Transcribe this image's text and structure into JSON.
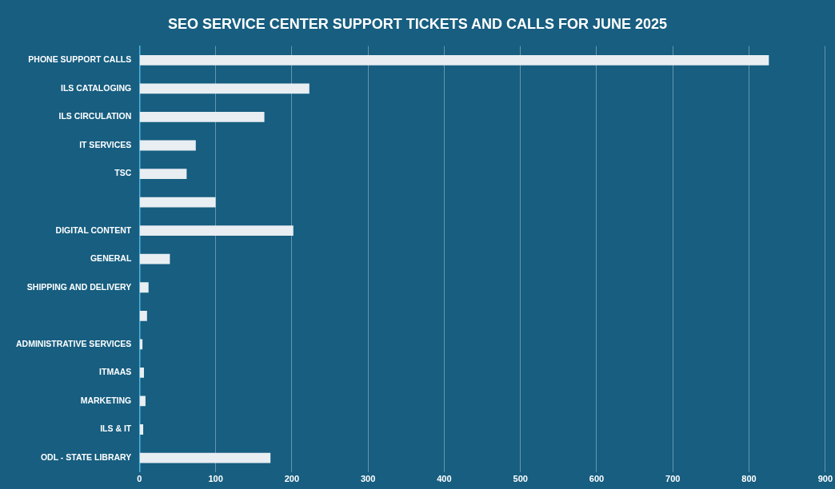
{
  "chart_data": {
    "type": "bar",
    "orientation": "horizontal",
    "title": "SEO SERVICE CENTER SUPPORT TICKETS AND CALLS FOR JUNE 2025",
    "categories": [
      "PHONE SUPPORT CALLS",
      "ILS CATALOGING",
      "ILS CIRCULATION",
      "IT SERVICES",
      "TSC",
      null,
      "DIGITAL CONTENT",
      "GENERAL",
      "SHIPPING AND DELIVERY",
      null,
      "ADMINISTRATIVE SERVICES",
      "ITMAAS",
      "MARKETING",
      "ILS & IT",
      "ODL - STATE LIBRARY"
    ],
    "values": [
      826,
      223,
      164,
      74,
      62,
      100,
      202,
      40,
      12,
      10,
      4,
      6,
      8,
      5,
      172
    ],
    "color": "#e8eef2",
    "xlim": [
      0,
      900
    ],
    "xticks": [
      0,
      100,
      200,
      300,
      400,
      500,
      600,
      700,
      800,
      900
    ],
    "grid": "x",
    "legend": false
  }
}
